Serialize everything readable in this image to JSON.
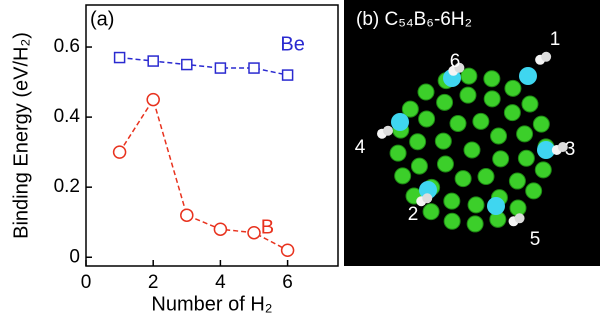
{
  "chart_data": {
    "type": "line",
    "panel_label": "(a)",
    "x_label": "Number of H₂",
    "y_label": "Binding Energy (eV/H₂)",
    "x": [
      1,
      2,
      3,
      4,
      5,
      6
    ],
    "series": [
      {
        "name": "Be",
        "color": "#2a2ad0",
        "marker": "square",
        "values": [
          0.57,
          0.56,
          0.55,
          0.54,
          0.54,
          0.52
        ]
      },
      {
        "name": "B",
        "color": "#e8321e",
        "marker": "circle",
        "values": [
          0.3,
          0.45,
          0.12,
          0.08,
          0.07,
          0.02
        ]
      }
    ],
    "xlim": [
      0,
      7.5
    ],
    "xticks": [
      0,
      2,
      4,
      6
    ],
    "ylim": [
      -0.025,
      0.72
    ],
    "yticks": [
      0,
      0.2,
      0.4,
      0.6
    ]
  },
  "panel_b": {
    "title": "(b) C₅₄B₆-6H₂",
    "atom_labels": [
      "1",
      "2",
      "3",
      "4",
      "5",
      "6"
    ]
  }
}
